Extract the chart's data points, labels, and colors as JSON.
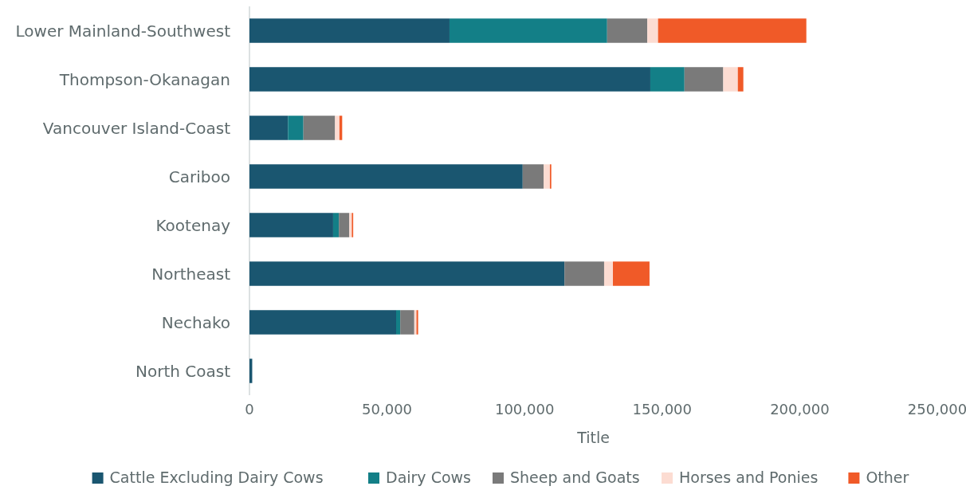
{
  "chart_data": {
    "type": "bar",
    "orientation": "horizontal",
    "stacked": true,
    "xlabel": "Title",
    "categories": [
      "Lower Mainland-Southwest",
      "Thompson-Okanagan",
      "Vancouver Island-Coast",
      "Cariboo",
      "Kootenay",
      "Northeast",
      "Nechako",
      "North Coast"
    ],
    "series": [
      {
        "name": "Cattle Excluding Dairy Cows",
        "color": "#1a5670",
        "values": [
          72700,
          145700,
          14000,
          99300,
          30400,
          114500,
          53300,
          1000
        ]
      },
      {
        "name": "Dairy Cows",
        "color": "#137f87",
        "values": [
          57300,
          12400,
          5600,
          0,
          2100,
          0,
          1500,
          0
        ]
      },
      {
        "name": "Sheep and Goats",
        "color": "#7a7a7a",
        "values": [
          14600,
          14100,
          11500,
          7600,
          3800,
          14400,
          5100,
          0
        ]
      },
      {
        "name": "Horses and Ponies",
        "color": "#fcdcd2",
        "values": [
          3900,
          5300,
          1600,
          2300,
          900,
          3200,
          800,
          0
        ]
      },
      {
        "name": "Other",
        "color": "#f05a28",
        "values": [
          53900,
          2000,
          1000,
          500,
          500,
          13300,
          600,
          0
        ]
      }
    ],
    "xlim": [
      0,
      250000
    ],
    "xticks": [
      0,
      {
        "value": 50000,
        "label": "50,000"
      },
      {
        "value": 100000,
        "label": "100,000"
      },
      {
        "value": 150000,
        "label": "150,000"
      },
      {
        "value": 200000,
        "label": "200,000"
      },
      {
        "value": 250000,
        "label": "250,000"
      }
    ],
    "grid": false,
    "legend": "bottom"
  }
}
